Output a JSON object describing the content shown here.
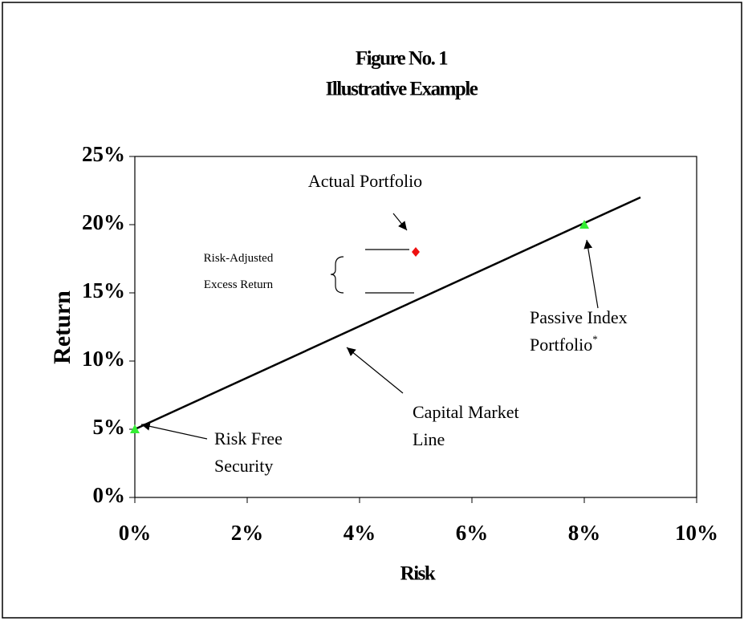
{
  "chart_data": {
    "type": "scatter",
    "title": "Figure No. 1",
    "subtitle": "Illustrative Example",
    "x_label": "Risk",
    "y_label": "Return",
    "xlim": [
      0,
      10
    ],
    "ylim": [
      0,
      25
    ],
    "xticks": [
      {
        "value": 0,
        "label": "0%"
      },
      {
        "value": 2,
        "label": "2%"
      },
      {
        "value": 4,
        "label": "4%"
      },
      {
        "value": 6,
        "label": "6%"
      },
      {
        "value": 8,
        "label": "8%"
      },
      {
        "value": 10,
        "label": "10%"
      }
    ],
    "yticks": [
      {
        "value": 0,
        "label": "0%"
      },
      {
        "value": 5,
        "label": "5%"
      },
      {
        "value": 10,
        "label": "10%"
      },
      {
        "value": 15,
        "label": "15%"
      },
      {
        "value": 20,
        "label": "20%"
      },
      {
        "value": 25,
        "label": "25%"
      }
    ],
    "series": [
      {
        "color": "#000000",
        "marker": "line",
        "x": [
          0,
          9
        ],
        "values": [
          5,
          22
        ]
      },
      {
        "color": "#33ee33",
        "marker": "triangle",
        "x": [
          0
        ],
        "values": [
          5
        ]
      },
      {
        "color": "#33ee33",
        "marker": "triangle",
        "x": [
          8
        ],
        "values": [
          20
        ]
      },
      {
        "color": "#ee1111",
        "marker": "diamond",
        "x": [
          5
        ],
        "values": [
          18
        ]
      }
    ],
    "annotations": [
      {
        "text": "Actual Portfolio"
      },
      {
        "text": "Risk-Adjusted"
      },
      {
        "text": "Excess Return"
      },
      {
        "text": "Passive Index"
      },
      {
        "text": "Portfolio",
        "sup": "*"
      },
      {
        "text": "Capital Market"
      },
      {
        "text": "Line"
      },
      {
        "text": "Risk Free"
      },
      {
        "text": "Security"
      }
    ]
  }
}
